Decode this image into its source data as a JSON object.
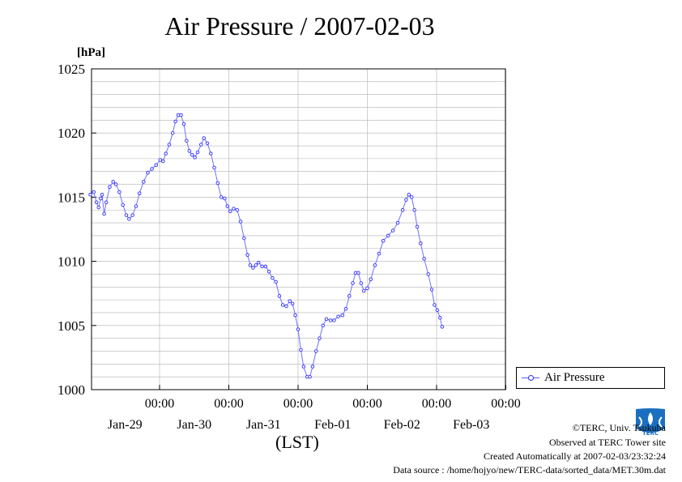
{
  "chart_data": {
    "type": "line",
    "title": "Air Pressure / 2007-02-03",
    "ylabel": "[hPa]",
    "xlabel": "(LST)",
    "ylim": [
      1000,
      1025
    ],
    "yticks": [
      1000,
      1005,
      1010,
      1015,
      1020,
      1025
    ],
    "xlim": [
      0,
      6
    ],
    "xticks": [
      {
        "pos": 1,
        "time": "00:00",
        "date": "Jan-29"
      },
      {
        "pos": 2,
        "time": "00:00",
        "date": "Jan-30"
      },
      {
        "pos": 3,
        "time": "00:00",
        "date": "Jan-31"
      },
      {
        "pos": 4,
        "time": "00:00",
        "date": "Feb-01"
      },
      {
        "pos": 5,
        "time": "00:00",
        "date": "Feb-02"
      },
      {
        "pos": 6,
        "time": "00:00",
        "date": "Feb-03"
      }
    ],
    "series": [
      {
        "name": "Air Pressure",
        "color": "#2a2aff",
        "points": [
          [
            0.0,
            1015.2
          ],
          [
            0.05,
            1015.4
          ],
          [
            0.09,
            1014.6
          ],
          [
            0.12,
            1014.2
          ],
          [
            0.15,
            1014.9
          ],
          [
            0.17,
            1015.2
          ],
          [
            0.2,
            1013.7
          ],
          [
            0.23,
            1014.6
          ],
          [
            0.28,
            1015.8
          ],
          [
            0.33,
            1016.2
          ],
          [
            0.37,
            1016.0
          ],
          [
            0.42,
            1015.4
          ],
          [
            0.47,
            1014.4
          ],
          [
            0.52,
            1013.6
          ],
          [
            0.56,
            1013.3
          ],
          [
            0.61,
            1013.6
          ],
          [
            0.66,
            1014.3
          ],
          [
            0.71,
            1015.3
          ],
          [
            0.77,
            1016.2
          ],
          [
            0.83,
            1016.9
          ],
          [
            0.89,
            1017.2
          ],
          [
            0.95,
            1017.5
          ],
          [
            1.01,
            1017.9
          ],
          [
            1.05,
            1017.8
          ],
          [
            1.09,
            1018.4
          ],
          [
            1.14,
            1019.1
          ],
          [
            1.19,
            1020.0
          ],
          [
            1.23,
            1020.9
          ],
          [
            1.27,
            1021.4
          ],
          [
            1.31,
            1021.4
          ],
          [
            1.35,
            1020.7
          ],
          [
            1.39,
            1019.4
          ],
          [
            1.43,
            1018.6
          ],
          [
            1.47,
            1018.3
          ],
          [
            1.51,
            1018.1
          ],
          [
            1.55,
            1018.5
          ],
          [
            1.6,
            1019.1
          ],
          [
            1.64,
            1019.6
          ],
          [
            1.69,
            1019.2
          ],
          [
            1.74,
            1018.4
          ],
          [
            1.79,
            1017.3
          ],
          [
            1.84,
            1016.1
          ],
          [
            1.89,
            1015.0
          ],
          [
            1.94,
            1014.9
          ],
          [
            1.98,
            1014.3
          ],
          [
            2.02,
            1013.9
          ],
          [
            2.07,
            1014.1
          ],
          [
            2.12,
            1014.0
          ],
          [
            2.17,
            1013.1
          ],
          [
            2.22,
            1011.8
          ],
          [
            2.27,
            1010.5
          ],
          [
            2.31,
            1009.7
          ],
          [
            2.35,
            1009.5
          ],
          [
            2.39,
            1009.7
          ],
          [
            2.43,
            1009.9
          ],
          [
            2.48,
            1009.6
          ],
          [
            2.53,
            1009.6
          ],
          [
            2.58,
            1009.2
          ],
          [
            2.63,
            1008.7
          ],
          [
            2.68,
            1008.4
          ],
          [
            2.73,
            1007.3
          ],
          [
            2.78,
            1006.6
          ],
          [
            2.83,
            1006.5
          ],
          [
            2.88,
            1006.9
          ],
          [
            2.92,
            1006.7
          ],
          [
            2.96,
            1005.8
          ],
          [
            3.0,
            1004.7
          ],
          [
            3.04,
            1003.1
          ],
          [
            3.08,
            1001.8
          ],
          [
            3.13,
            1001.0
          ],
          [
            3.17,
            1001.0
          ],
          [
            3.21,
            1001.8
          ],
          [
            3.26,
            1003.0
          ],
          [
            3.31,
            1004.0
          ],
          [
            3.36,
            1005.0
          ],
          [
            3.41,
            1005.5
          ],
          [
            3.47,
            1005.4
          ],
          [
            3.52,
            1005.4
          ],
          [
            3.58,
            1005.7
          ],
          [
            3.64,
            1005.8
          ],
          [
            3.69,
            1006.3
          ],
          [
            3.74,
            1007.3
          ],
          [
            3.79,
            1008.3
          ],
          [
            3.83,
            1009.1
          ],
          [
            3.87,
            1009.1
          ],
          [
            3.91,
            1008.3
          ],
          [
            3.95,
            1007.7
          ],
          [
            4.0,
            1007.9
          ],
          [
            4.05,
            1008.6
          ],
          [
            4.11,
            1009.7
          ],
          [
            4.17,
            1010.6
          ],
          [
            4.23,
            1011.6
          ],
          [
            4.3,
            1012.0
          ],
          [
            4.37,
            1012.4
          ],
          [
            4.44,
            1013.0
          ],
          [
            4.51,
            1014.0
          ],
          [
            4.56,
            1014.8
          ],
          [
            4.6,
            1015.2
          ],
          [
            4.64,
            1015.0
          ],
          [
            4.68,
            1014.0
          ],
          [
            4.72,
            1012.7
          ],
          [
            4.77,
            1011.4
          ],
          [
            4.82,
            1010.2
          ],
          [
            4.88,
            1009.0
          ],
          [
            4.93,
            1007.8
          ],
          [
            4.97,
            1006.6
          ],
          [
            5.01,
            1006.2
          ],
          [
            5.05,
            1005.6
          ],
          [
            5.08,
            1004.9
          ]
        ]
      }
    ]
  },
  "legend": {
    "label": "Air Pressure"
  },
  "footer": {
    "copyright": "©TERC, Univ. Tsukuba",
    "observed": "Observed at TERC Tower site",
    "created": "Created Automatically at 2007-02-03/23:32:24",
    "source": "Data source : /home/hojyo/new/TERC-data/sorted_data/MET.30m.dat"
  },
  "logo": {
    "text": "TERC",
    "color": "#1b6fc0"
  }
}
